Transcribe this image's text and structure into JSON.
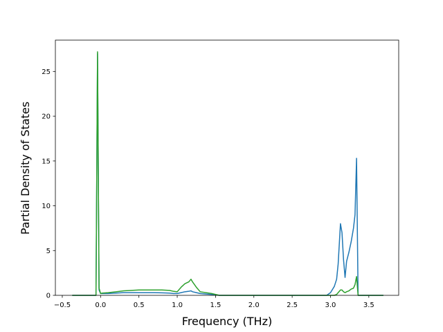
{
  "chart_data": {
    "type": "line",
    "xlabel": "Frequency (THz)",
    "ylabel": "Partial Density of States",
    "x": [
      -0.37,
      -0.06,
      -0.04,
      -0.02,
      0.0,
      0.02,
      0.1,
      0.2,
      0.3,
      0.4,
      0.5,
      0.6,
      0.7,
      0.8,
      0.9,
      0.95,
      1.0,
      1.05,
      1.1,
      1.15,
      1.18,
      1.2,
      1.25,
      1.3,
      1.45,
      1.55,
      2.0,
      2.5,
      2.95,
      3.0,
      3.05,
      3.08,
      3.1,
      3.13,
      3.15,
      3.17,
      3.19,
      3.21,
      3.24,
      3.27,
      3.3,
      3.32,
      3.34,
      3.36,
      3.5,
      3.69
    ],
    "series": [
      {
        "color": "#1f77b4",
        "values": [
          0,
          0,
          27.0,
          0.6,
          0.2,
          0.2,
          0.2,
          0.25,
          0.3,
          0.3,
          0.3,
          0.3,
          0.3,
          0.28,
          0.25,
          0.2,
          0.2,
          0.3,
          0.4,
          0.45,
          0.5,
          0.4,
          0.3,
          0.2,
          0.1,
          0,
          0,
          0,
          0,
          0.3,
          1.0,
          1.8,
          3.5,
          8.0,
          7.0,
          4.0,
          2.0,
          3.8,
          4.8,
          6.0,
          7.5,
          9.0,
          15.3,
          0,
          0,
          0
        ]
      },
      {
        "color": "#2ca02c",
        "values": [
          0,
          0,
          27.2,
          0.8,
          0.2,
          0.25,
          0.3,
          0.4,
          0.5,
          0.55,
          0.6,
          0.6,
          0.6,
          0.6,
          0.55,
          0.45,
          0.4,
          0.9,
          1.3,
          1.5,
          1.8,
          1.5,
          0.9,
          0.4,
          0.2,
          0,
          0,
          0,
          0,
          0,
          0,
          0.1,
          0.3,
          0.6,
          0.6,
          0.4,
          0.3,
          0.4,
          0.5,
          0.7,
          0.8,
          1.2,
          2.1,
          0,
          0,
          0
        ]
      }
    ],
    "xlim": [
      -0.59,
      3.89
    ],
    "xticks": [
      {
        "value": -0.5,
        "label": "−0.5"
      },
      {
        "value": 0,
        "label": "0.0"
      },
      0.5,
      {
        "value": 1,
        "label": "1.0"
      },
      1.5,
      {
        "value": 2,
        "label": "2.0"
      },
      2.5,
      {
        "value": 3,
        "label": "3.0"
      },
      3.5
    ],
    "ylim": [
      0,
      28.5
    ],
    "yticks": [
      0,
      5,
      10,
      15,
      20,
      25
    ],
    "grid": false
  }
}
